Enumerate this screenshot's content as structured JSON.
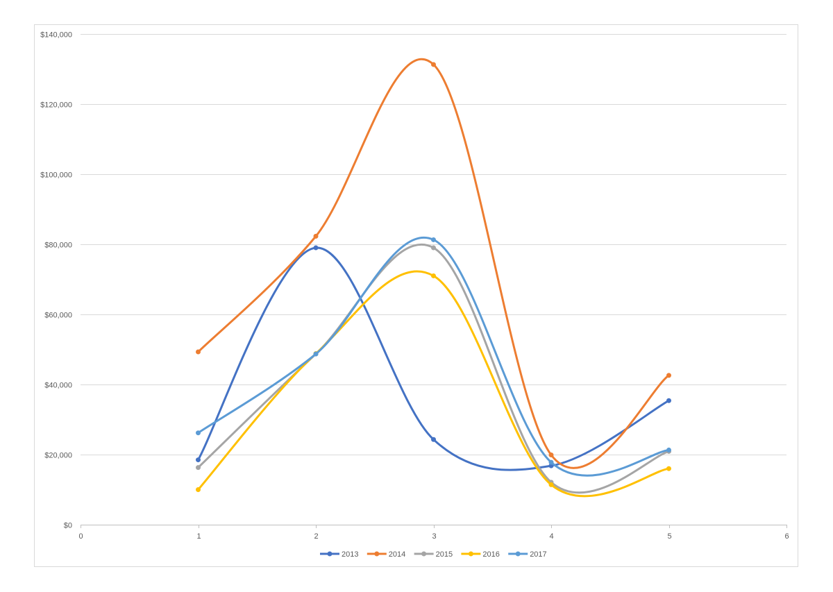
{
  "chart_data": {
    "type": "scatter",
    "style": "smoothed lines with markers",
    "title": "",
    "xlabel": "",
    "ylabel": "",
    "xlim": [
      0,
      6
    ],
    "ylim": [
      0,
      140000
    ],
    "x_ticks": [
      0,
      1,
      2,
      3,
      4,
      5,
      6
    ],
    "x_tick_labels": [
      "0",
      "1",
      "2",
      "3",
      "4",
      "5",
      "6"
    ],
    "y_ticks": [
      0,
      20000,
      40000,
      60000,
      80000,
      100000,
      120000,
      140000
    ],
    "y_tick_labels": [
      "$0",
      "$20,000",
      "$40,000",
      "$60,000",
      "$80,000",
      "$100,000",
      "$120,000",
      "$140,000"
    ],
    "grid": "horizontal",
    "legend_position": "bottom",
    "x": [
      1,
      2,
      3,
      4,
      5
    ],
    "series": [
      {
        "name": "2013",
        "color": "#4472C4",
        "values": [
          18500,
          79000,
          24300,
          16800,
          35400
        ]
      },
      {
        "name": "2014",
        "color": "#ED7D31",
        "values": [
          49300,
          82300,
          131300,
          19900,
          42600
        ]
      },
      {
        "name": "2015",
        "color": "#A5A5A5",
        "values": [
          16300,
          48700,
          79000,
          12100,
          20900
        ]
      },
      {
        "name": "2016",
        "color": "#FFC000",
        "values": [
          10000,
          48800,
          71000,
          11400,
          16000
        ]
      },
      {
        "name": "2017",
        "color": "#5B9BD5",
        "values": [
          26200,
          48700,
          81300,
          17800,
          21300
        ]
      }
    ]
  }
}
